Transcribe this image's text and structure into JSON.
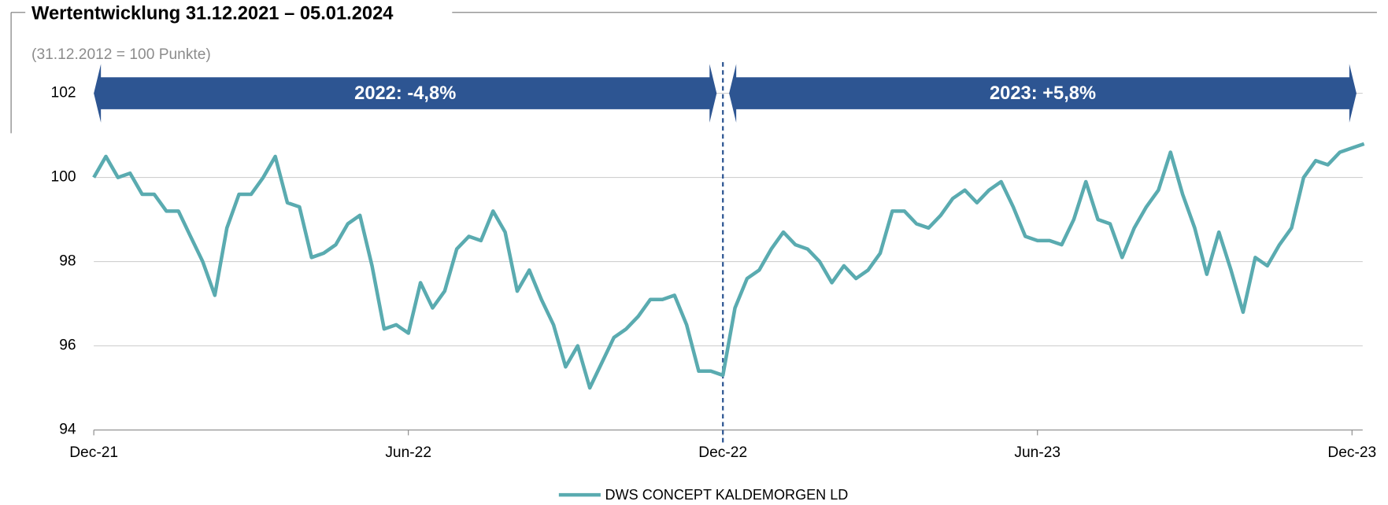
{
  "chart_data": {
    "type": "line",
    "title": "Wertentwicklung 31.12.2021 – 05.01.2024",
    "subtitle": "(31.12.2012 = 100 Punkte)",
    "annotations": [
      "2022: -4,8%",
      "2023: +5,8%"
    ],
    "categories": [
      "Dec-21",
      null,
      null,
      null,
      null,
      null,
      null,
      null,
      null,
      null,
      null,
      null,
      null,
      null,
      null,
      null,
      null,
      null,
      null,
      null,
      null,
      null,
      null,
      null,
      null,
      null,
      "Jun-22",
      null,
      null,
      null,
      null,
      null,
      null,
      null,
      null,
      null,
      null,
      null,
      null,
      null,
      null,
      null,
      null,
      null,
      null,
      null,
      null,
      null,
      null,
      null,
      null,
      null,
      "Dec-22",
      null,
      null,
      null,
      null,
      null,
      null,
      null,
      null,
      null,
      null,
      null,
      null,
      null,
      null,
      null,
      null,
      null,
      null,
      null,
      null,
      null,
      null,
      null,
      null,
      null,
      "Jun-23",
      null,
      null,
      null,
      null,
      null,
      null,
      null,
      null,
      null,
      null,
      null,
      null,
      null,
      null,
      null,
      null,
      null,
      null,
      null,
      null,
      null,
      null,
      null,
      null,
      null,
      "Dec-23",
      null
    ],
    "series": [
      {
        "name": "DWS CONCEPT KALDEMORGEN LD",
        "color": "#5aabb0",
        "values": [
          100.0,
          100.5,
          100.0,
          100.1,
          99.6,
          99.6,
          99.2,
          99.2,
          98.6,
          98.0,
          97.2,
          98.8,
          99.6,
          99.6,
          100.0,
          100.5,
          99.4,
          99.3,
          98.1,
          98.2,
          98.4,
          98.9,
          99.1,
          97.9,
          96.4,
          96.5,
          96.3,
          97.5,
          96.9,
          97.3,
          98.3,
          98.6,
          98.5,
          99.2,
          98.7,
          97.3,
          97.8,
          97.1,
          96.5,
          95.5,
          96.0,
          95.0,
          95.6,
          96.2,
          96.4,
          96.7,
          97.1,
          97.1,
          97.2,
          96.5,
          95.4,
          95.4,
          95.3,
          96.9,
          97.6,
          97.8,
          98.3,
          98.7,
          98.4,
          98.3,
          98.0,
          97.5,
          97.9,
          97.6,
          97.8,
          98.2,
          99.2,
          99.2,
          98.9,
          98.8,
          99.1,
          99.5,
          99.7,
          99.4,
          99.7,
          99.9,
          99.3,
          98.6,
          98.5,
          98.5,
          98.4,
          99.0,
          99.9,
          99.0,
          98.9,
          98.1,
          98.8,
          99.3,
          99.7,
          100.6,
          99.6,
          98.8,
          97.7,
          98.7,
          97.8,
          96.8,
          98.1,
          97.9,
          98.4,
          98.8,
          100.0,
          100.4,
          100.3,
          100.6,
          100.7,
          100.8
        ]
      }
    ],
    "ylim": [
      94,
      102
    ],
    "yticks": [
      94,
      96,
      98,
      100,
      102
    ],
    "grid": true,
    "legend": "bottom"
  }
}
